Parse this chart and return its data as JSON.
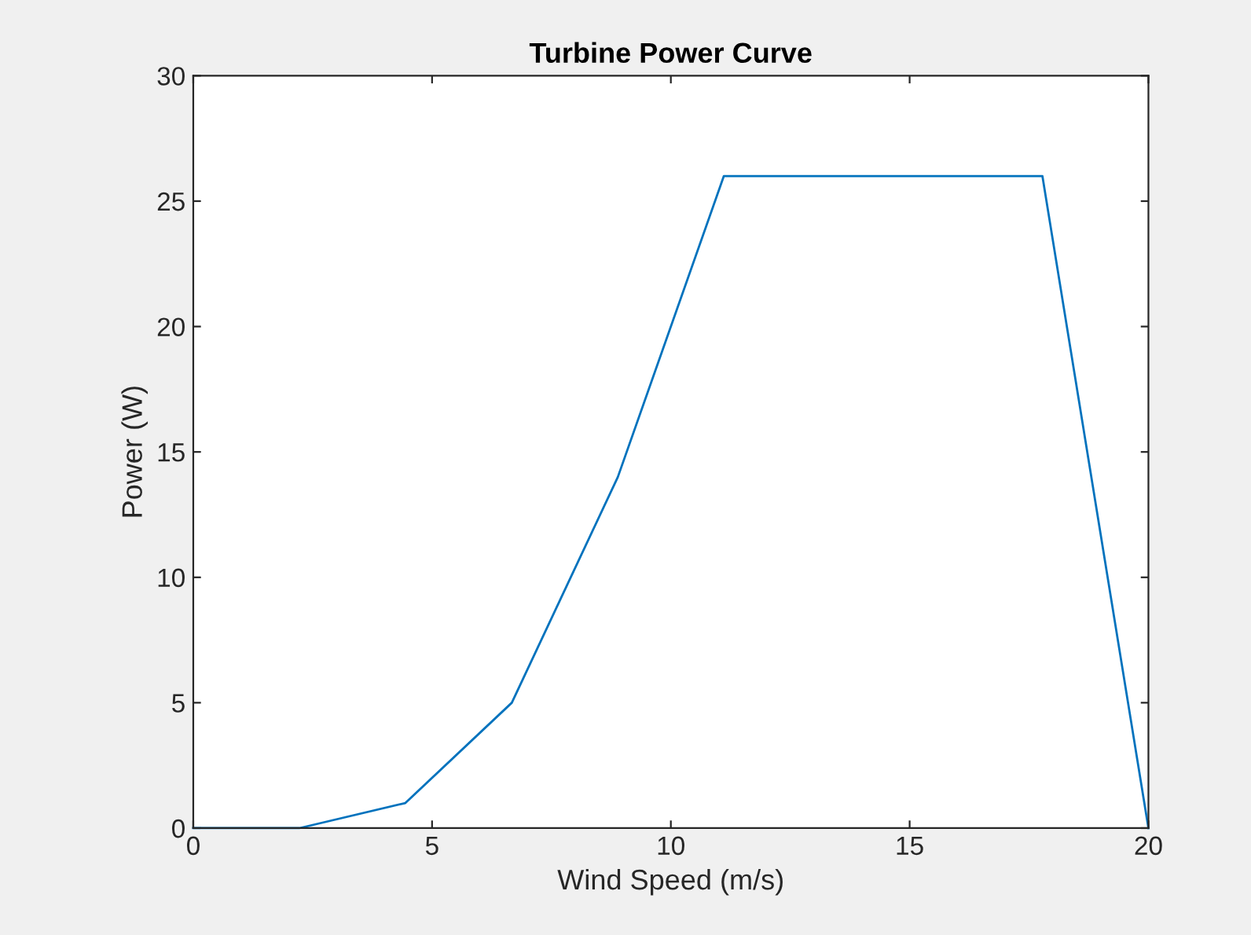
{
  "chart_data": {
    "type": "line",
    "title": "Turbine Power Curve",
    "xlabel": "Wind Speed (m/s)",
    "ylabel": "Power (W)",
    "x": [
      0,
      2.22,
      4.44,
      6.67,
      8.89,
      11.11,
      13.33,
      15.56,
      17.78,
      20
    ],
    "series": [
      {
        "color": "#0072bd",
        "values": [
          0,
          0,
          1,
          5,
          14,
          26,
          26,
          26,
          26,
          0
        ]
      }
    ],
    "xlim": [
      0,
      20
    ],
    "xticks": [
      0,
      5,
      10,
      15,
      20
    ],
    "ylim": [
      0,
      30
    ],
    "yticks": [
      0,
      5,
      10,
      15,
      20,
      25,
      30
    ],
    "grid": false,
    "legend": false,
    "marker": "none",
    "line_style": "solid"
  }
}
